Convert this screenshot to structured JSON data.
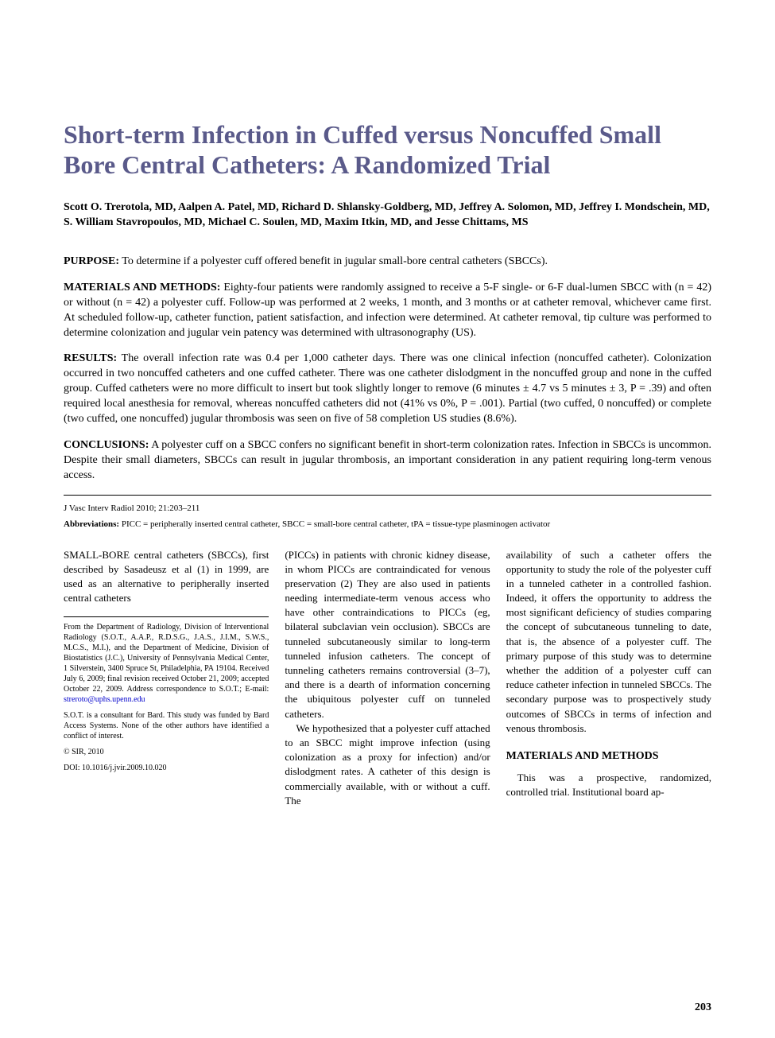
{
  "title": "Short-term Infection in Cuffed versus Noncuffed Small Bore Central Catheters: A Randomized Trial",
  "authors": "Scott O. Trerotola, MD, Aalpen A. Patel, MD, Richard D. Shlansky-Goldberg, MD, Jeffrey A. Solomon, MD, Jeffrey I. Mondschein, MD, S. William Stavropoulos, MD, Michael C. Soulen, MD, Maxim Itkin, MD, and Jesse Chittams, MS",
  "abstract": {
    "purpose": {
      "label": "PURPOSE:",
      "text": " To determine if a polyester cuff offered benefit in jugular small-bore central catheters (SBCCs)."
    },
    "methods": {
      "label": "MATERIALS AND METHODS:",
      "text": " Eighty-four patients were randomly assigned to receive a 5-F single- or 6-F dual-lumen SBCC with (n = 42) or without (n = 42) a polyester cuff. Follow-up was performed at 2 weeks, 1 month, and 3 months or at catheter removal, whichever came first. At scheduled follow-up, catheter function, patient satisfaction, and infection were determined. At catheter removal, tip culture was performed to determine colonization and jugular vein patency was determined with ultrasonography (US)."
    },
    "results": {
      "label": "RESULTS:",
      "text": " The overall infection rate was 0.4 per 1,000 catheter days. There was one clinical infection (noncuffed catheter). Colonization occurred in two noncuffed catheters and one cuffed catheter. There was one catheter dislodgment in the noncuffed group and none in the cuffed group. Cuffed catheters were no more difficult to insert but took slightly longer to remove (6 minutes ± 4.7 vs 5 minutes ± 3, P = .39) and often required local anesthesia for removal, whereas noncuffed catheters did not (41% vs 0%, P = .001). Partial (two cuffed, 0 noncuffed) or complete (two cuffed, one noncuffed) jugular thrombosis was seen on five of 58 completion US studies (8.6%)."
    },
    "conclusions": {
      "label": "CONCLUSIONS:",
      "text": " A polyester cuff on a SBCC confers no significant benefit in short-term colonization rates. Infection in SBCCs is uncommon. Despite their small diameters, SBCCs can result in jugular thrombosis, an important consideration in any patient requiring long-term venous access."
    }
  },
  "citation": "J Vasc Interv Radiol 2010; 21:203–211",
  "abbreviations": {
    "label": "Abbreviations:",
    "text": "  PICC = peripherally inserted central catheter, SBCC = small-bore central catheter, tPA = tissue-type plasminogen activator"
  },
  "body": {
    "col1_p1": "SMALL-BORE central catheters (SBCCs), first described by Sasadeusz et al (1) in 1999, are used as an alternative to peripherally inserted central catheters",
    "col2_p1": "(PICCs) in patients with chronic kidney disease, in whom PICCs are contraindicated for venous preservation (2) They are also used in patients needing intermediate-term venous access who have other contraindications to PICCs (eg, bilateral subclavian vein occlusion). SBCCs are tunneled subcutaneously similar to long-term tunneled infusion catheters. The concept of tunneling catheters remains controversial (3–7), and there is a dearth of information concerning the ubiquitous polyester cuff on tunneled catheters.",
    "col2_p2": "We hypothesized that a polyester cuff attached to an SBCC might improve infection (using colonization as a proxy for infection) and/or dislodgment rates. A catheter of this design is commercially available, with or without a cuff. The",
    "col3_p1": "availability of such a catheter offers the opportunity to study the role of the polyester cuff in a tunneled catheter in a controlled fashion. Indeed, it offers the opportunity to address the most significant deficiency of studies comparing the concept of subcutaneous tunneling to date, that is, the absence of a polyester cuff. The primary purpose of this study was to determine whether the addition of a polyester cuff can reduce catheter infection in tunneled SBCCs. The secondary purpose was to prospectively study outcomes of SBCCs in terms of infection and venous thrombosis.",
    "methods_heading": "MATERIALS AND METHODS",
    "col3_p2": "This was a prospective, randomized, controlled trial. Institutional board ap-"
  },
  "footnotes": {
    "affiliation": "From the Department of Radiology, Division of Interventional Radiology (S.O.T., A.A.P., R.D.S.G., J.A.S., J.I.M., S.W.S., M.C.S., M.I.), and the Department of Medicine, Division of Biostatistics (J.C.), University of Pennsylvania Medical Center, 1 Silverstein, 3400 Spruce St, Philadelphia, PA 19104. Received July 6, 2009; final revision received October 21, 2009; accepted October 22, 2009. Address correspondence to S.O.T.; E-mail: ",
    "email": "streroto@uphs.upenn.edu",
    "disclosure": "S.O.T. is a consultant for Bard. This study was funded by Bard Access Systems. None of the other authors have identified a conflict of interest.",
    "copyright": "© SIR, 2010",
    "doi": "DOI: 10.1016/j.jvir.2009.10.020"
  },
  "page_number": "203",
  "colors": {
    "title_color": "#5a5a8a",
    "link_color": "#0000cc",
    "text_color": "#000000",
    "background": "#ffffff"
  },
  "typography": {
    "title_fontsize": 32,
    "authors_fontsize": 14,
    "abstract_fontsize": 14,
    "body_fontsize": 13,
    "footnote_fontsize": 10,
    "citation_fontsize": 11
  }
}
